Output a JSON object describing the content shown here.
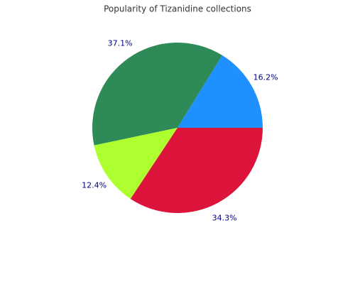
{
  "chart_data": {
    "type": "pie",
    "title": "Popularity of Tizanidine collections",
    "values": [
      16.2,
      37.1,
      12.4,
      34.3
    ],
    "value_labels": [
      "16.2%",
      "37.1%",
      "12.4%",
      "34.3%"
    ],
    "colors": [
      "#1e90ff",
      "#2e8b57",
      "#adff2f",
      "#dc143c"
    ]
  }
}
